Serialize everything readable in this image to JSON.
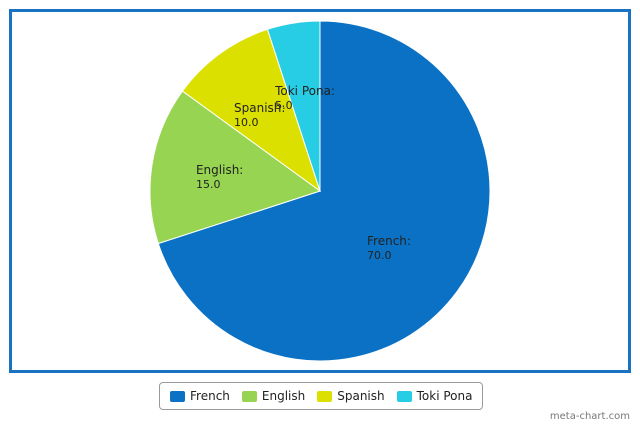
{
  "chart_data": {
    "type": "pie",
    "start_angle_deg": 0,
    "direction": "clockwise",
    "slices": [
      {
        "label": "French",
        "value": 70.0,
        "value_text": "70.0",
        "color": "#0a71c4"
      },
      {
        "label": "English",
        "value": 15.0,
        "value_text": "15.0",
        "color": "#96d451"
      },
      {
        "label": "Spanish",
        "value": 10.0,
        "value_text": "10.0",
        "color": "#dce000"
      },
      {
        "label": "Toki Pona",
        "value": 5.0,
        "value_text": "5.0",
        "color": "#27cde5"
      }
    ],
    "legend": {
      "position": "bottom-center",
      "entries": [
        "French",
        "English",
        "Spanish",
        "Toki Pona"
      ]
    }
  },
  "frame_color": "#1a73c2",
  "watermark": "meta-chart.com"
}
